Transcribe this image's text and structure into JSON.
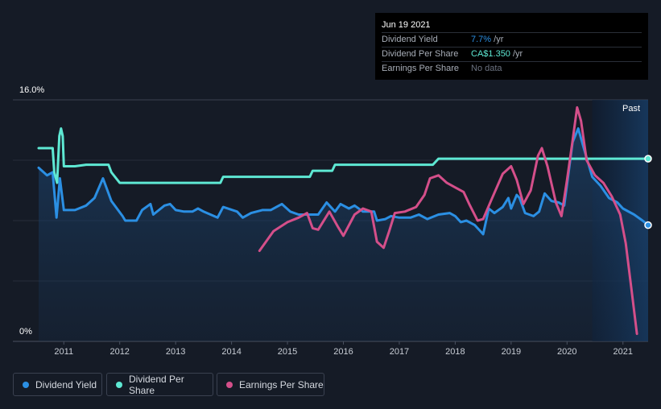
{
  "tooltip": {
    "date": "Jun 19 2021",
    "rows": [
      {
        "label": "Dividend Yield",
        "value": "7.7%",
        "unit": " /yr",
        "color": "#2b8fe3"
      },
      {
        "label": "Dividend Per Share",
        "value": "CA$1.350",
        "unit": " /yr",
        "color": "#5ee8d3"
      },
      {
        "label": "Earnings Per Share",
        "value": "No data",
        "unit": "",
        "color": "#6b7280"
      }
    ]
  },
  "past_label": "Past",
  "legend": [
    {
      "label": "Dividend Yield",
      "color": "#2b8fe3"
    },
    {
      "label": "Dividend Per Share",
      "color": "#5ee8d3"
    },
    {
      "label": "Earnings Per Share",
      "color": "#d44f8a"
    }
  ],
  "chart_data": {
    "type": "line",
    "y_tick_labels": [
      "16.0%",
      "0%"
    ],
    "ylim": [
      0,
      16
    ],
    "xlim": [
      2010.55,
      2021.45
    ],
    "x_ticks": [
      2011,
      2012,
      2013,
      2014,
      2015,
      2016,
      2017,
      2018,
      2019,
      2020,
      2021
    ],
    "grid": true,
    "past_region": [
      2020.45,
      2021.45
    ],
    "series": [
      {
        "name": "Dividend Yield",
        "color": "#2b8fe3",
        "area": true,
        "end_marker": true,
        "points": [
          [
            2010.55,
            11.5
          ],
          [
            2010.7,
            11.0
          ],
          [
            2010.8,
            11.2
          ],
          [
            2010.87,
            8.2
          ],
          [
            2010.93,
            10.8
          ],
          [
            2011.0,
            8.7
          ],
          [
            2011.2,
            8.7
          ],
          [
            2011.4,
            9.0
          ],
          [
            2011.55,
            9.5
          ],
          [
            2011.7,
            10.8
          ],
          [
            2011.85,
            9.3
          ],
          [
            2012.05,
            8.3
          ],
          [
            2012.1,
            8.0
          ],
          [
            2012.3,
            8.0
          ],
          [
            2012.4,
            8.7
          ],
          [
            2012.55,
            9.1
          ],
          [
            2012.6,
            8.4
          ],
          [
            2012.8,
            9.0
          ],
          [
            2012.9,
            9.1
          ],
          [
            2013.0,
            8.7
          ],
          [
            2013.15,
            8.6
          ],
          [
            2013.3,
            8.6
          ],
          [
            2013.4,
            8.8
          ],
          [
            2013.5,
            8.6
          ],
          [
            2013.75,
            8.2
          ],
          [
            2013.85,
            8.9
          ],
          [
            2014.1,
            8.6
          ],
          [
            2014.2,
            8.2
          ],
          [
            2014.35,
            8.5
          ],
          [
            2014.55,
            8.7
          ],
          [
            2014.7,
            8.7
          ],
          [
            2014.9,
            9.1
          ],
          [
            2015.05,
            8.6
          ],
          [
            2015.2,
            8.4
          ],
          [
            2015.4,
            8.4
          ],
          [
            2015.55,
            8.4
          ],
          [
            2015.7,
            9.2
          ],
          [
            2015.85,
            8.6
          ],
          [
            2015.95,
            9.1
          ],
          [
            2016.1,
            8.8
          ],
          [
            2016.2,
            9.0
          ],
          [
            2016.35,
            8.6
          ],
          [
            2016.55,
            8.6
          ],
          [
            2016.6,
            8.0
          ],
          [
            2016.75,
            8.1
          ],
          [
            2016.85,
            8.3
          ],
          [
            2017.0,
            8.2
          ],
          [
            2017.2,
            8.2
          ],
          [
            2017.35,
            8.4
          ],
          [
            2017.5,
            8.1
          ],
          [
            2017.7,
            8.4
          ],
          [
            2017.9,
            8.5
          ],
          [
            2018.0,
            8.3
          ],
          [
            2018.1,
            7.9
          ],
          [
            2018.2,
            8.0
          ],
          [
            2018.35,
            7.7
          ],
          [
            2018.45,
            7.3
          ],
          [
            2018.5,
            7.1
          ],
          [
            2018.6,
            8.8
          ],
          [
            2018.7,
            8.5
          ],
          [
            2018.85,
            8.9
          ],
          [
            2018.95,
            9.5
          ],
          [
            2019.0,
            8.8
          ],
          [
            2019.1,
            9.7
          ],
          [
            2019.15,
            9.5
          ],
          [
            2019.25,
            8.5
          ],
          [
            2019.4,
            8.3
          ],
          [
            2019.5,
            8.6
          ],
          [
            2019.6,
            9.8
          ],
          [
            2019.72,
            9.3
          ],
          [
            2019.85,
            9.2
          ],
          [
            2019.95,
            9.0
          ],
          [
            2020.1,
            13.2
          ],
          [
            2020.2,
            14.1
          ],
          [
            2020.3,
            12.8
          ],
          [
            2020.45,
            10.9
          ],
          [
            2020.6,
            10.3
          ],
          [
            2020.75,
            9.5
          ],
          [
            2020.9,
            9.2
          ],
          [
            2021.0,
            8.8
          ],
          [
            2021.2,
            8.4
          ],
          [
            2021.35,
            8.0
          ],
          [
            2021.45,
            7.7
          ]
        ]
      },
      {
        "name": "Dividend Per Share",
        "color": "#5ee8d3",
        "area": false,
        "end_marker": true,
        "points": [
          [
            2010.55,
            12.8
          ],
          [
            2010.8,
            12.8
          ],
          [
            2010.83,
            11.2
          ],
          [
            2010.88,
            10.5
          ],
          [
            2010.92,
            13.6
          ],
          [
            2010.95,
            14.1
          ],
          [
            2010.98,
            13.6
          ],
          [
            2011.0,
            11.6
          ],
          [
            2011.2,
            11.6
          ],
          [
            2011.4,
            11.7
          ],
          [
            2011.8,
            11.7
          ],
          [
            2011.85,
            11.2
          ],
          [
            2012.0,
            10.5
          ],
          [
            2013.8,
            10.5
          ],
          [
            2013.85,
            10.9
          ],
          [
            2015.4,
            10.9
          ],
          [
            2015.45,
            11.3
          ],
          [
            2015.8,
            11.3
          ],
          [
            2015.85,
            11.7
          ],
          [
            2017.6,
            11.7
          ],
          [
            2017.7,
            12.1
          ],
          [
            2021.45,
            12.1
          ]
        ]
      },
      {
        "name": "Earnings Per Share",
        "color": "#d44f8a",
        "area": false,
        "end_marker": false,
        "points": [
          [
            2014.5,
            6.0
          ],
          [
            2014.75,
            7.3
          ],
          [
            2015.0,
            7.9
          ],
          [
            2015.2,
            8.2
          ],
          [
            2015.35,
            8.5
          ],
          [
            2015.45,
            7.5
          ],
          [
            2015.55,
            7.4
          ],
          [
            2015.75,
            8.6
          ],
          [
            2015.9,
            7.6
          ],
          [
            2016.0,
            7.0
          ],
          [
            2016.2,
            8.4
          ],
          [
            2016.35,
            8.8
          ],
          [
            2016.5,
            8.6
          ],
          [
            2016.6,
            6.6
          ],
          [
            2016.72,
            6.2
          ],
          [
            2016.82,
            7.3
          ],
          [
            2016.92,
            8.5
          ],
          [
            2017.1,
            8.6
          ],
          [
            2017.3,
            8.9
          ],
          [
            2017.45,
            9.7
          ],
          [
            2017.55,
            10.8
          ],
          [
            2017.7,
            11.0
          ],
          [
            2017.85,
            10.5
          ],
          [
            2018.0,
            10.2
          ],
          [
            2018.15,
            9.9
          ],
          [
            2018.25,
            9.1
          ],
          [
            2018.4,
            8.0
          ],
          [
            2018.5,
            8.1
          ],
          [
            2018.65,
            9.4
          ],
          [
            2018.85,
            11.1
          ],
          [
            2019.0,
            11.6
          ],
          [
            2019.1,
            10.7
          ],
          [
            2019.22,
            9.1
          ],
          [
            2019.35,
            10.0
          ],
          [
            2019.48,
            12.3
          ],
          [
            2019.55,
            12.8
          ],
          [
            2019.65,
            11.6
          ],
          [
            2019.8,
            9.2
          ],
          [
            2019.9,
            8.3
          ],
          [
            2020.0,
            10.7
          ],
          [
            2020.1,
            13.3
          ],
          [
            2020.18,
            15.5
          ],
          [
            2020.25,
            14.6
          ],
          [
            2020.35,
            12.0
          ],
          [
            2020.5,
            11.0
          ],
          [
            2020.65,
            10.5
          ],
          [
            2020.8,
            9.6
          ],
          [
            2020.95,
            8.4
          ],
          [
            2021.05,
            6.5
          ],
          [
            2021.15,
            3.5
          ],
          [
            2021.25,
            0.5
          ]
        ]
      }
    ]
  }
}
